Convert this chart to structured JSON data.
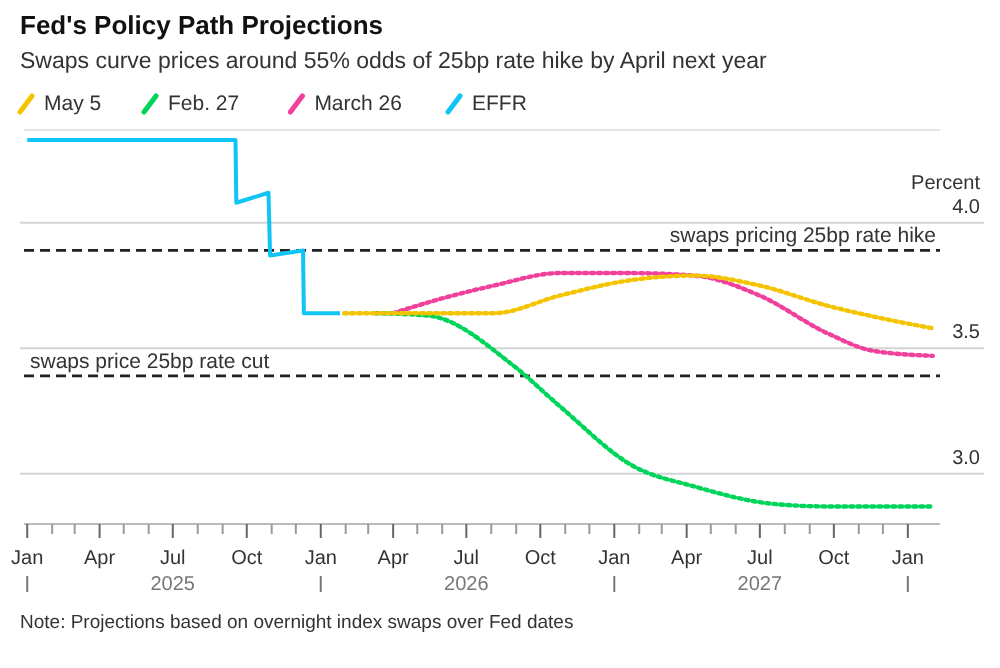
{
  "chart_data": {
    "type": "line",
    "title": "Fed's Policy Path Projections",
    "subtitle": "Swaps curve prices around 55% odds of 25bp rate hike by April next year",
    "ylabel": "Percent",
    "series": [
      {
        "name": "May 5",
        "color": "#f5c400",
        "line_style": "dotted",
        "x": [
          "2026-01-30",
          "2026-04-01",
          "2026-08-04",
          "2026-10-25",
          "2027-01-18",
          "2027-04-10",
          "2027-07-01",
          "2027-09-23",
          "2027-12-14",
          "2028-02-01"
        ],
        "values": [
          3.64,
          3.64,
          3.64,
          3.71,
          3.77,
          3.79,
          3.75,
          3.67,
          3.61,
          3.58
        ]
      },
      {
        "name": "Feb. 27",
        "color": "#00d45a",
        "line_style": "dotted",
        "x": [
          "2026-03-10",
          "2026-05-15",
          "2026-08-29",
          "2026-10-25",
          "2027-01-25",
          "2027-04-10",
          "2027-07-18",
          "2027-09-23",
          "2028-02-01"
        ],
        "values": [
          3.64,
          3.63,
          3.43,
          3.27,
          3.03,
          2.95,
          2.88,
          2.87,
          2.87
        ]
      },
      {
        "name": "March 26",
        "color": "#f0409c",
        "line_style": "dotted",
        "x": [
          "2026-04-01",
          "2026-05-22",
          "2026-08-04",
          "2026-10-25",
          "2027-01-18",
          "2027-04-10",
          "2027-07-01",
          "2027-09-23",
          "2027-11-19",
          "2028-02-01"
        ],
        "values": [
          3.64,
          3.69,
          3.75,
          3.8,
          3.8,
          3.79,
          3.71,
          3.56,
          3.49,
          3.47
        ]
      },
      {
        "name": "EFFR",
        "color": "#10c4f4",
        "line_style": "solid",
        "type": "step",
        "x": [
          "2025-01-01",
          "2025-09-17",
          "2025-09-18",
          "2025-10-28",
          "2025-10-30",
          "2025-12-10",
          "2025-12-11",
          "2026-01-25"
        ],
        "values": [
          4.33,
          4.33,
          4.08,
          4.12,
          3.87,
          3.89,
          3.64,
          3.64
        ]
      }
    ],
    "xlim": [
      "2024-12-28",
      "2028-02-10"
    ],
    "xticks": [
      {
        "value": "2025-01-01",
        "label": "Jan"
      },
      {
        "value": "2025-02-01",
        "label": null
      },
      {
        "value": "2025-03-01",
        "label": null
      },
      {
        "value": "2025-04-01",
        "label": "Apr"
      },
      {
        "value": "2025-05-01",
        "label": null
      },
      {
        "value": "2025-06-01",
        "label": null
      },
      {
        "value": "2025-07-01",
        "label": "Jul\n2025"
      },
      {
        "value": "2025-08-01",
        "label": null
      },
      {
        "value": "2025-09-01",
        "label": null
      },
      {
        "value": "2025-10-01",
        "label": "Oct"
      },
      {
        "value": "2025-11-01",
        "label": null
      },
      {
        "value": "2025-12-01",
        "label": null
      },
      {
        "value": "2026-01-01",
        "label": "Jan"
      },
      {
        "value": "2026-02-01",
        "label": null
      },
      {
        "value": "2026-03-01",
        "label": null
      },
      {
        "value": "2026-04-01",
        "label": "Apr"
      },
      {
        "value": "2026-05-01",
        "label": null
      },
      {
        "value": "2026-06-01",
        "label": null
      },
      {
        "value": "2026-07-01",
        "label": "Jul\n2026"
      },
      {
        "value": "2026-08-01",
        "label": null
      },
      {
        "value": "2026-09-01",
        "label": null
      },
      {
        "value": "2026-10-01",
        "label": "Oct"
      },
      {
        "value": "2026-11-01",
        "label": null
      },
      {
        "value": "2026-12-01",
        "label": null
      },
      {
        "value": "2027-01-01",
        "label": "Jan"
      },
      {
        "value": "2027-02-01",
        "label": null
      },
      {
        "value": "2027-03-01",
        "label": null
      },
      {
        "value": "2027-04-01",
        "label": "Apr"
      },
      {
        "value": "2027-05-01",
        "label": null
      },
      {
        "value": "2027-06-01",
        "label": null
      },
      {
        "value": "2027-07-01",
        "label": "Jul\n2027"
      },
      {
        "value": "2027-08-01",
        "label": null
      },
      {
        "value": "2027-09-01",
        "label": null
      },
      {
        "value": "2027-10-01",
        "label": "Oct"
      },
      {
        "value": "2027-11-01",
        "label": null
      },
      {
        "value": "2027-12-01",
        "label": null
      },
      {
        "value": "2028-01-01",
        "label": "Jan"
      }
    ],
    "ylim": [
      2.8,
      4.37
    ],
    "yticks": [
      {
        "value": 3,
        "label": "3.0"
      },
      {
        "value": 3.5,
        "label": "3.5"
      },
      {
        "value": 4,
        "label": "4.0"
      }
    ],
    "grid": "y",
    "legend": "top left",
    "ref_lines": [
      {
        "axis": "y",
        "value": 3.89,
        "label": "swaps pricing 25bp rate hike",
        "color": "#222222",
        "line_style": "dashed"
      },
      {
        "axis": "y",
        "value": 3.39,
        "label": "swaps price 25bp rate cut",
        "color": "#222222",
        "line_style": "dashed"
      }
    ],
    "annotations": [
      "Note: Projections based on overnight index swaps over Fed dates"
    ]
  }
}
